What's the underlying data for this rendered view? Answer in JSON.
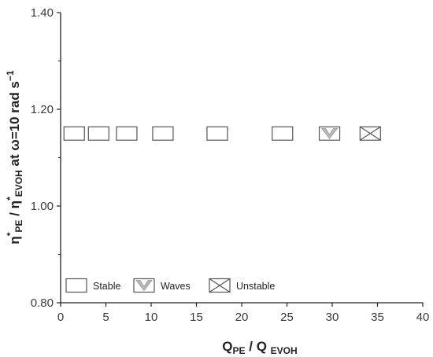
{
  "chart_data": {
    "type": "scatter",
    "title": "",
    "xlabel": {
      "main": "Q",
      "sub1": "PE",
      "mid": " / Q ",
      "sub2": "EVOH"
    },
    "ylabel": {
      "eta": "η",
      "star": "*",
      "sub1": "PE",
      "mid": " / η",
      "sub2": "EVOH",
      "tail": " at ω=10 rad s",
      "sup": "−1"
    },
    "xlim": [
      0,
      40
    ],
    "ylim": [
      0.8,
      1.4
    ],
    "x_ticks": [
      0,
      5,
      10,
      15,
      20,
      25,
      30,
      35,
      40
    ],
    "x_tick_labels": [
      "0",
      "5",
      "10",
      "15",
      "20",
      "25",
      "30",
      "35",
      "40"
    ],
    "y_ticks": [
      0.8,
      1.0,
      1.2,
      1.4
    ],
    "y_tick_labels": [
      "0.80",
      "1.00",
      "1.20",
      "1.40"
    ],
    "grid": false,
    "legend_position": "bottom-left",
    "series": [
      {
        "name": "Stable",
        "marker": "empty-rectangle",
        "points": [
          {
            "x": 1.5,
            "y": 1.15
          },
          {
            "x": 4.2,
            "y": 1.15
          },
          {
            "x": 7.3,
            "y": 1.15
          },
          {
            "x": 11.3,
            "y": 1.15
          },
          {
            "x": 17.3,
            "y": 1.15
          },
          {
            "x": 24.5,
            "y": 1.15
          }
        ]
      },
      {
        "name": "Waves",
        "marker": "rectangle-with-v",
        "points": [
          {
            "x": 29.7,
            "y": 1.15
          }
        ]
      },
      {
        "name": "Unstable",
        "marker": "crossed-rectangle",
        "points": [
          {
            "x": 34.2,
            "y": 1.15
          }
        ]
      }
    ],
    "colors": {
      "marker_stroke": "#555555",
      "wave_fill": "#b8b8b8",
      "axis": "#222222"
    }
  }
}
